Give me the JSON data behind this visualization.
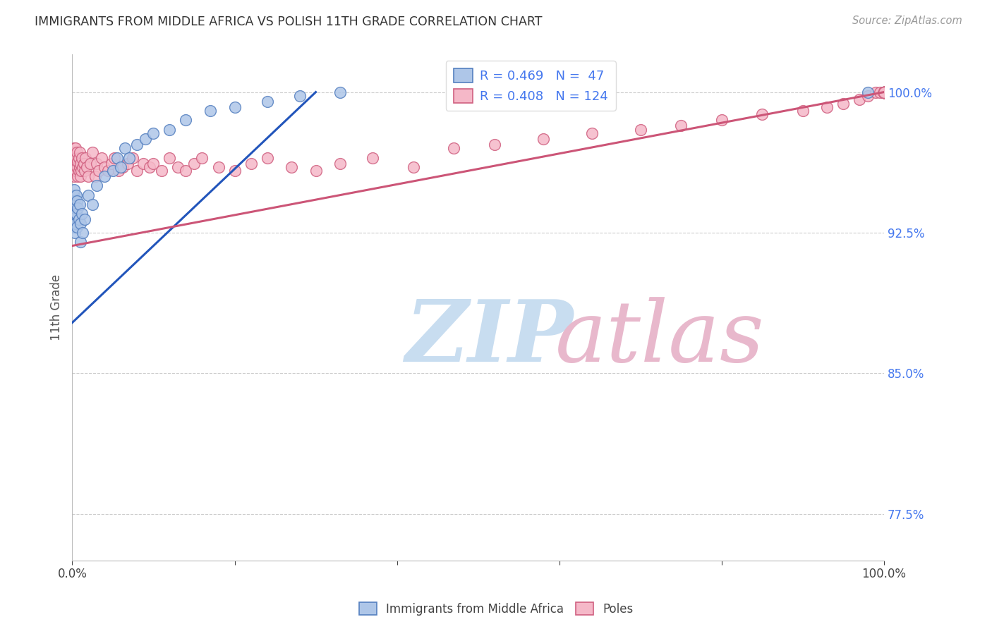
{
  "title": "IMMIGRANTS FROM MIDDLE AFRICA VS POLISH 11TH GRADE CORRELATION CHART",
  "source": "Source: ZipAtlas.com",
  "ylabel": "11th Grade",
  "legend_blue_r": "R = 0.469",
  "legend_blue_n": "N =  47",
  "legend_pink_r": "R = 0.408",
  "legend_pink_n": "N = 124",
  "blue_fill_color": "#aec6e8",
  "blue_edge_color": "#5580c0",
  "pink_fill_color": "#f5b8c8",
  "pink_edge_color": "#d06080",
  "blue_line_color": "#2255bb",
  "pink_line_color": "#cc5577",
  "watermark_zip_color": "#c8ddf0",
  "watermark_atlas_color": "#e8b8cc",
  "grid_color": "#cccccc",
  "title_color": "#333333",
  "right_tick_color": "#4477ee",
  "ytick_vals": [
    0.775,
    0.85,
    0.925,
    1.0
  ],
  "ytick_labels": [
    "77.5%",
    "85.0%",
    "92.5%",
    "100.0%"
  ],
  "xlim": [
    0.0,
    1.0
  ],
  "ylim": [
    0.75,
    1.02
  ],
  "blue_line_x0": 0.0,
  "blue_line_y0": 0.877,
  "blue_line_x1": 0.3,
  "blue_line_y1": 1.0,
  "pink_line_x0": 0.0,
  "pink_line_y0": 0.918,
  "pink_line_x1": 1.0,
  "pink_line_y1": 1.0,
  "blue_points_x": [
    0.001,
    0.001,
    0.001,
    0.001,
    0.001,
    0.002,
    0.002,
    0.002,
    0.002,
    0.003,
    0.003,
    0.003,
    0.004,
    0.004,
    0.005,
    0.005,
    0.006,
    0.006,
    0.007,
    0.008,
    0.009,
    0.01,
    0.01,
    0.012,
    0.013,
    0.015,
    0.02,
    0.025,
    0.03,
    0.04,
    0.05,
    0.055,
    0.06,
    0.065,
    0.07,
    0.08,
    0.09,
    0.1,
    0.12,
    0.14,
    0.17,
    0.2,
    0.24,
    0.28,
    0.33,
    0.5,
    0.98
  ],
  "blue_points_y": [
    0.93,
    0.935,
    0.94,
    0.945,
    0.928,
    0.93,
    0.935,
    0.945,
    0.948,
    0.925,
    0.938,
    0.942,
    0.93,
    0.94,
    0.935,
    0.945,
    0.928,
    0.942,
    0.938,
    0.932,
    0.94,
    0.92,
    0.93,
    0.935,
    0.925,
    0.932,
    0.945,
    0.94,
    0.95,
    0.955,
    0.958,
    0.965,
    0.96,
    0.97,
    0.965,
    0.972,
    0.975,
    0.978,
    0.98,
    0.985,
    0.99,
    0.992,
    0.995,
    0.998,
    1.0,
    1.0,
    1.0
  ],
  "pink_points_x": [
    0.001,
    0.001,
    0.001,
    0.002,
    0.002,
    0.002,
    0.003,
    0.003,
    0.003,
    0.004,
    0.004,
    0.005,
    0.005,
    0.006,
    0.006,
    0.007,
    0.007,
    0.008,
    0.008,
    0.009,
    0.009,
    0.01,
    0.01,
    0.011,
    0.012,
    0.013,
    0.014,
    0.015,
    0.016,
    0.018,
    0.02,
    0.022,
    0.025,
    0.028,
    0.03,
    0.033,
    0.036,
    0.04,
    0.044,
    0.048,
    0.052,
    0.057,
    0.062,
    0.068,
    0.074,
    0.08,
    0.087,
    0.095,
    0.1,
    0.11,
    0.12,
    0.13,
    0.14,
    0.15,
    0.16,
    0.18,
    0.2,
    0.22,
    0.24,
    0.27,
    0.3,
    0.33,
    0.37,
    0.42,
    0.47,
    0.52,
    0.58,
    0.64,
    0.7,
    0.75,
    0.8,
    0.85,
    0.9,
    0.93,
    0.95,
    0.97,
    0.98,
    0.99,
    0.995,
    1.0,
    1.0,
    1.0,
    1.0,
    1.0,
    1.0,
    1.0,
    1.0,
    1.0,
    1.0,
    1.0,
    1.0,
    1.0,
    1.0,
    1.0,
    1.0,
    1.0,
    1.0,
    1.0,
    1.0,
    1.0,
    1.0,
    1.0,
    1.0,
    1.0,
    1.0,
    1.0,
    1.0,
    1.0,
    1.0,
    1.0,
    1.0,
    1.0,
    1.0,
    1.0,
    1.0,
    1.0,
    1.0,
    1.0,
    1.0,
    1.0,
    1.0,
    1.0,
    1.0,
    1.0
  ],
  "pink_points_y": [
    0.96,
    0.965,
    0.968,
    0.955,
    0.962,
    0.97,
    0.958,
    0.963,
    0.968,
    0.962,
    0.97,
    0.958,
    0.965,
    0.96,
    0.968,
    0.955,
    0.963,
    0.958,
    0.965,
    0.96,
    0.968,
    0.955,
    0.962,
    0.958,
    0.965,
    0.96,
    0.962,
    0.958,
    0.965,
    0.96,
    0.955,
    0.962,
    0.968,
    0.955,
    0.962,
    0.958,
    0.965,
    0.96,
    0.958,
    0.962,
    0.965,
    0.958,
    0.96,
    0.962,
    0.965,
    0.958,
    0.962,
    0.96,
    0.962,
    0.958,
    0.965,
    0.96,
    0.958,
    0.962,
    0.965,
    0.96,
    0.958,
    0.962,
    0.965,
    0.96,
    0.958,
    0.962,
    0.965,
    0.96,
    0.97,
    0.972,
    0.975,
    0.978,
    0.98,
    0.982,
    0.985,
    0.988,
    0.99,
    0.992,
    0.994,
    0.996,
    0.998,
    1.0,
    1.0,
    1.0,
    1.0,
    1.0,
    1.0,
    1.0,
    1.0,
    1.0,
    1.0,
    1.0,
    1.0,
    1.0,
    1.0,
    1.0,
    1.0,
    1.0,
    1.0,
    1.0,
    1.0,
    1.0,
    1.0,
    1.0,
    1.0,
    1.0,
    1.0,
    1.0,
    1.0,
    1.0,
    1.0,
    1.0,
    1.0,
    1.0,
    1.0,
    1.0,
    1.0,
    1.0,
    1.0,
    1.0,
    1.0,
    1.0,
    1.0,
    1.0,
    1.0,
    1.0,
    1.0,
    1.0
  ]
}
